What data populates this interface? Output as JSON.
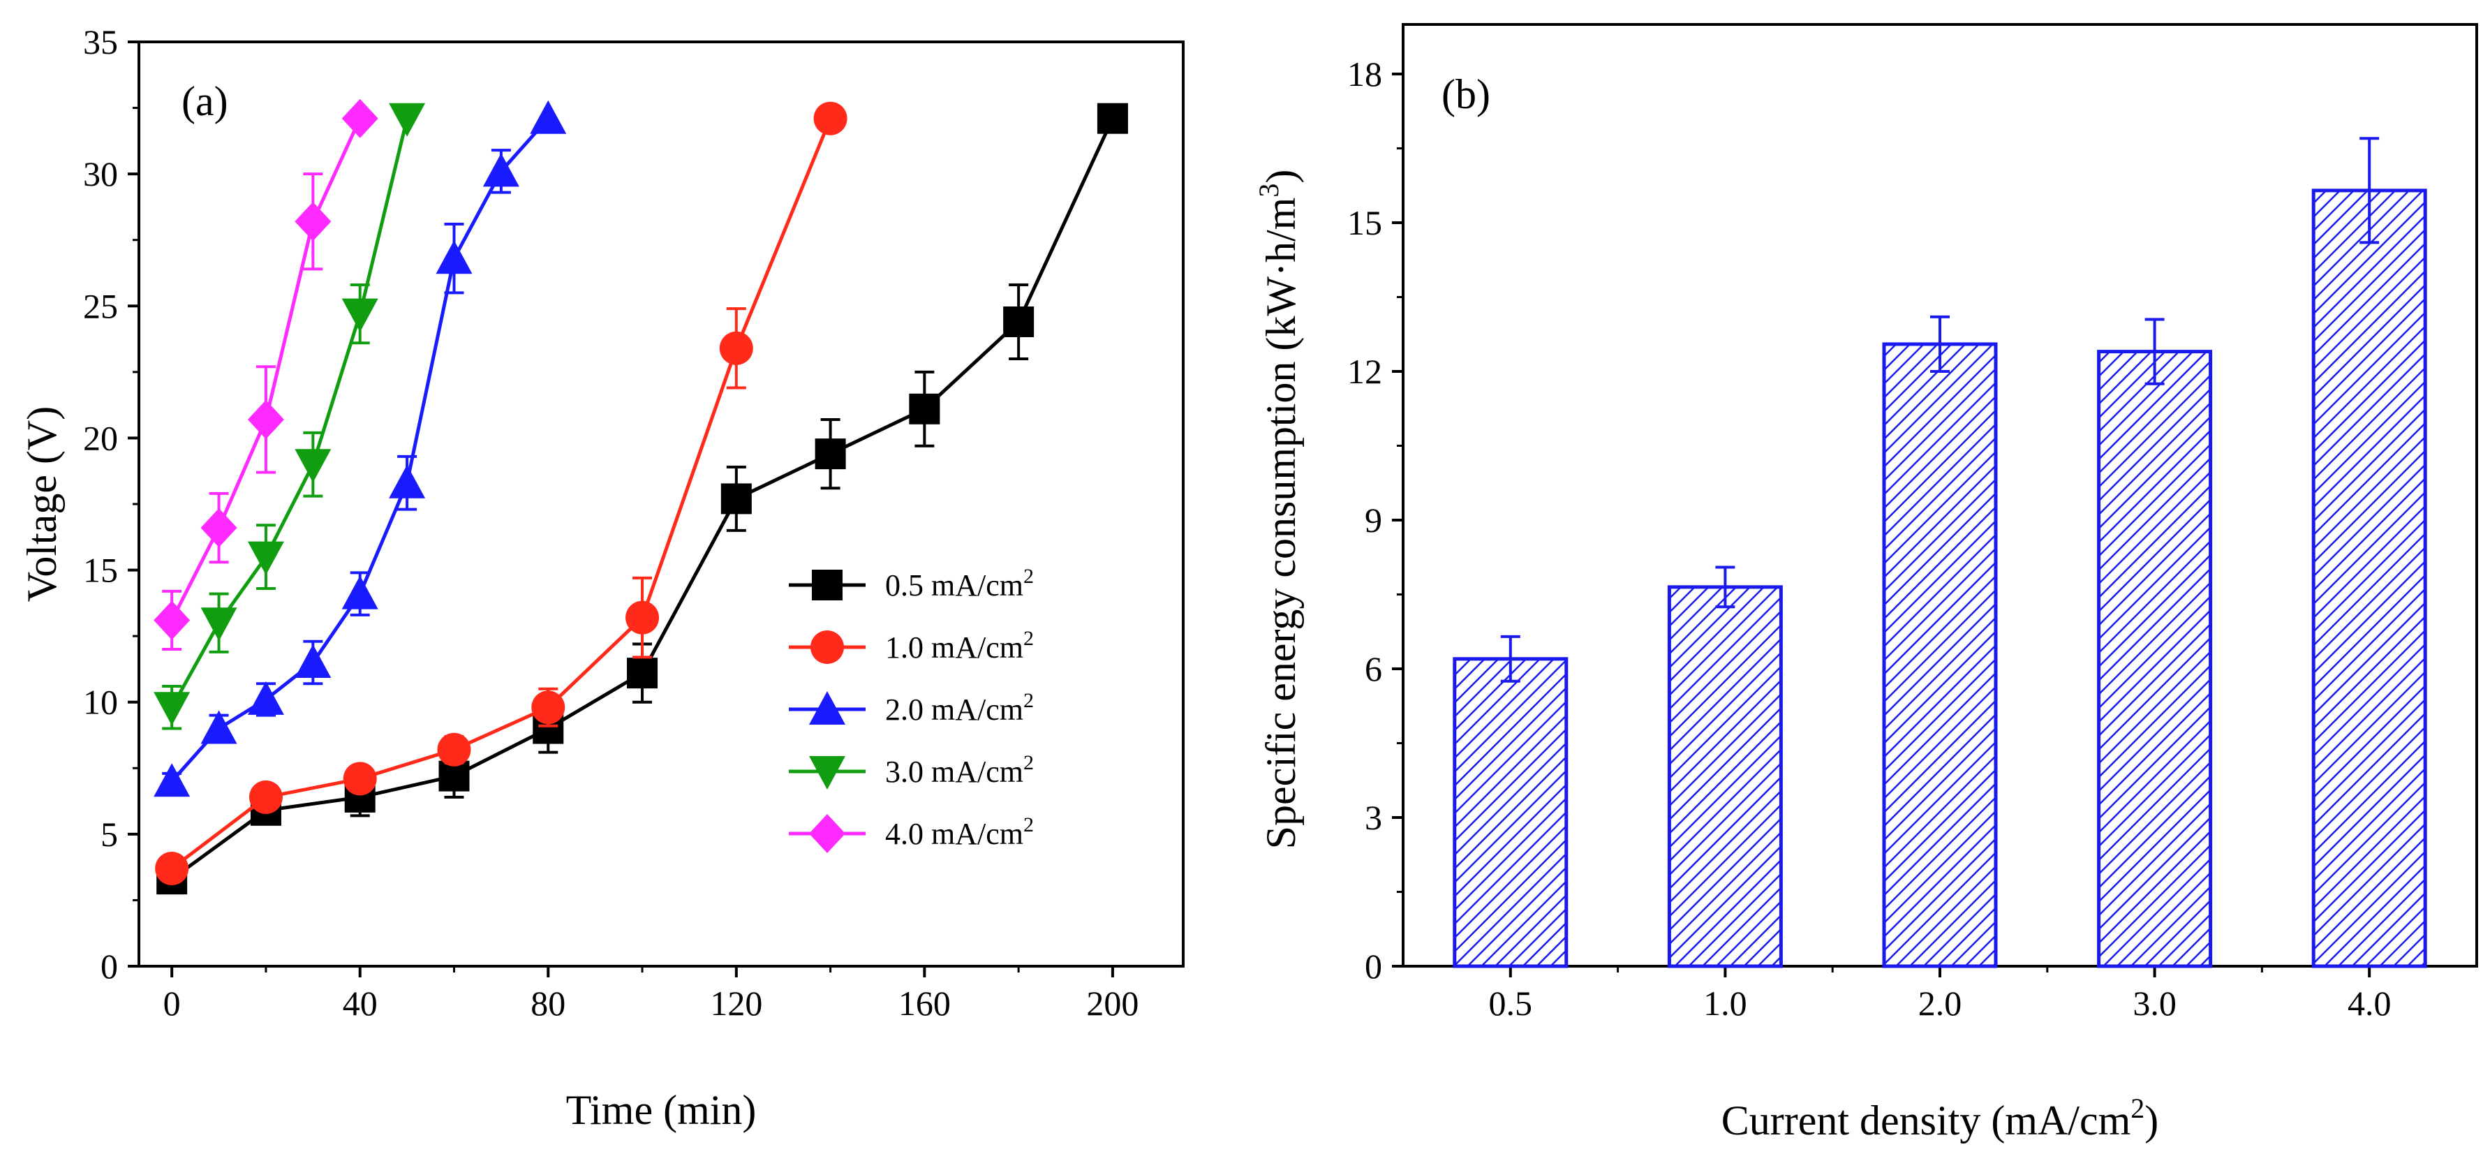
{
  "chart_data": [
    {
      "type": "line",
      "panel_label": "(a)",
      "xlabel": "Time (min)",
      "ylabel": "Voltage (V)",
      "xlim": [
        -7,
        215
      ],
      "ylim": [
        0,
        35
      ],
      "xticks": [
        "0",
        "40",
        "80",
        "120",
        "160",
        "200"
      ],
      "yticks": [
        "0",
        "5",
        "10",
        "15",
        "20",
        "25",
        "30",
        "35"
      ],
      "legend_position": "center-right",
      "series": [
        {
          "name": "0.5 mA/cm",
          "sup": "2",
          "color": "#000000",
          "marker": "square",
          "x": [
            0,
            20,
            40,
            60,
            80,
            100,
            120,
            140,
            160,
            180,
            200
          ],
          "y": [
            3.3,
            5.9,
            6.4,
            7.2,
            9.0,
            11.1,
            17.7,
            19.4,
            21.1,
            24.4,
            32.1
          ],
          "err": [
            0.4,
            0.5,
            0.7,
            0.8,
            0.9,
            1.1,
            1.2,
            1.3,
            1.4,
            1.4,
            0
          ]
        },
        {
          "name": "1.0 mA/cm",
          "sup": "2",
          "color": "#ff2a1a",
          "marker": "circle",
          "x": [
            0,
            20,
            40,
            60,
            80,
            100,
            120,
            140
          ],
          "y": [
            3.7,
            6.4,
            7.1,
            8.2,
            9.8,
            13.2,
            23.4,
            32.1
          ],
          "err": [
            0.3,
            0.4,
            0.4,
            0.5,
            0.7,
            1.5,
            1.5,
            0
          ]
        },
        {
          "name": "2.0 mA/cm",
          "sup": "2",
          "color": "#1a1aff",
          "marker": "triangle-up",
          "x": [
            0,
            10,
            20,
            30,
            40,
            50,
            60,
            70,
            80
          ],
          "y": [
            7.0,
            9.0,
            10.1,
            11.5,
            14.1,
            18.3,
            26.8,
            30.1,
            32.1
          ],
          "err": [
            0.3,
            0.5,
            0.6,
            0.8,
            0.8,
            1.0,
            1.3,
            0.8,
            0
          ]
        },
        {
          "name": "3.0 mA/cm",
          "sup": "2",
          "color": "#109e10",
          "marker": "triangle-down",
          "x": [
            0,
            10,
            20,
            30,
            40,
            50
          ],
          "y": [
            9.8,
            13.0,
            15.5,
            19.0,
            24.7,
            32.1
          ],
          "err": [
            0.8,
            1.1,
            1.2,
            1.2,
            1.1,
            0
          ]
        },
        {
          "name": "4.0 mA/cm",
          "sup": "2",
          "color": "#ff2aff",
          "marker": "diamond",
          "x": [
            0,
            10,
            20,
            30,
            40
          ],
          "y": [
            13.1,
            16.6,
            20.7,
            28.2,
            32.1
          ],
          "err": [
            1.1,
            1.3,
            2.0,
            1.8,
            0
          ]
        }
      ]
    },
    {
      "type": "bar",
      "panel_label": "(b)",
      "xlabel": "Current density (mA/cm",
      "xlabel_sup": "2",
      "xlabel_end": ")",
      "ylabel": "Specific energy consumption (kW·h/m",
      "ylabel_sup": "3",
      "ylabel_end": ")",
      "categories": [
        "0.5",
        "1.0",
        "2.0",
        "3.0",
        "4.0"
      ],
      "values": [
        6.2,
        7.65,
        12.55,
        12.4,
        15.65
      ],
      "errors": [
        0.45,
        0.4,
        0.55,
        0.65,
        1.05
      ],
      "ylim": [
        0,
        19
      ],
      "yticks": [
        "0",
        "3",
        "6",
        "9",
        "12",
        "15",
        "18"
      ],
      "bar_color": "#1a1aee",
      "fill": "diagonal-hatch"
    }
  ]
}
